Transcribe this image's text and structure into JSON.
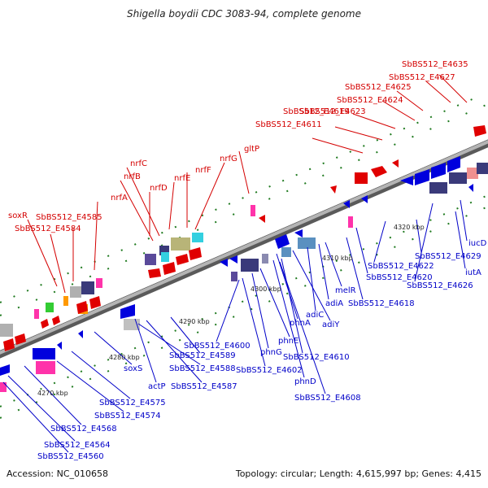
{
  "title": "Shigella boydii CDC 3083-94, complete genome",
  "footer": {
    "accession": "Accession: NC_010658",
    "summary": "Topology: circular; Length: 4,615,997 bp; Genes: 4,415"
  },
  "colors": {
    "forward_labels": "#d40000",
    "reverse_labels": "#0000c8",
    "backbone": "#8c8c8c",
    "ticks": "#1f7a1f"
  },
  "scale_labels": [
    "4270 kbp",
    "4280 kbp",
    "4290 kbp",
    "4300 kbp",
    "4310 kbp",
    "4320 kbp"
  ],
  "forward_gene_labels": [
    "SbBS512_E4635",
    "SbBS512_E4627",
    "SbBS512_E4625",
    "SbBS512_E4624",
    "SbBS512_E4623",
    "SbBS512_E4619",
    "SbBS512_E4611",
    "gltP",
    "nrfG",
    "nrfF",
    "nrfE",
    "nrfD",
    "nrfC",
    "nrfB",
    "nrfA",
    "soxR",
    "SbBS512_E4585",
    "SbBS512_E4584"
  ],
  "reverse_gene_labels": [
    "iucD",
    "iutA",
    "SbBS512_E4629",
    "SbBS512_E4626",
    "SbBS512_E4622",
    "SbBS512_E4620",
    "SbBS512_E4618",
    "melR",
    "adiA",
    "adiC",
    "adiY",
    "phnA",
    "SbBS512_E4610",
    "phnE",
    "phnG",
    "phnD",
    "SbBS512_E4608",
    "SbBS512_E4602",
    "SbBS512_E4600",
    "SbBS512_E4589",
    "SbBS512_E4588",
    "SbBS512_E4587",
    "actP",
    "soxS",
    "SbBS512_E4575",
    "SbBS512_E4574",
    "SbBS512_E4568",
    "SbBS512_E4564",
    "SbBS512_E4560"
  ]
}
